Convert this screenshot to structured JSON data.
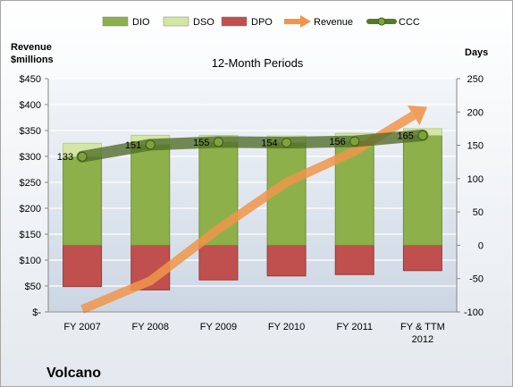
{
  "chart_data": {
    "type": "bar",
    "title": "12-Month Periods",
    "company": "Volcano",
    "left_axis_title": [
      "Revenue",
      "$millions"
    ],
    "right_axis_title": "Days",
    "categories": [
      [
        "FY 2007"
      ],
      [
        "FY 2008"
      ],
      [
        "FY 2009"
      ],
      [
        "FY 2010"
      ],
      [
        "FY 2011"
      ],
      [
        "FY & TTM",
        "2012"
      ]
    ],
    "left_axis": {
      "min": 0,
      "max": 450,
      "step": 50,
      "tick_labels": [
        "$-",
        "$50",
        "$100",
        "$150",
        "$200",
        "$250",
        "$300",
        "$350",
        "$400",
        "$450"
      ]
    },
    "right_axis": {
      "min": -100,
      "max": 250,
      "step": 50,
      "tick_labels": [
        "-100",
        "-50",
        "0",
        "50",
        "100",
        "150",
        "200",
        "250"
      ]
    },
    "legend_position": "top",
    "legend": [
      {
        "label": "DIO",
        "kind": "bar",
        "color": "#8db04a"
      },
      {
        "label": "DSO",
        "kind": "bar",
        "color": "#d3e6a4"
      },
      {
        "label": "DPO",
        "kind": "bar",
        "color": "#c0504d"
      },
      {
        "label": "Revenue",
        "kind": "arrow",
        "color": "#f0954a"
      },
      {
        "label": "CCC",
        "kind": "line-marker",
        "color": "#567a2a"
      }
    ],
    "series": [
      {
        "name": "DIO",
        "axis": "right",
        "values": [
          133,
          151,
          155,
          154,
          156,
          165
        ]
      },
      {
        "name": "DSO",
        "axis": "right",
        "values": [
          20,
          14,
          10,
          10,
          12,
          10
        ]
      },
      {
        "name": "DPO",
        "axis": "right",
        "values": [
          -62,
          -67,
          -52,
          -46,
          -44,
          -38
        ]
      },
      {
        "name": "CCC",
        "axis": "right",
        "values": [
          133,
          151,
          155,
          154,
          156,
          165
        ],
        "labels": [
          "133",
          "151",
          "155",
          "154",
          "156",
          "165"
        ]
      },
      {
        "name": "Revenue",
        "axis": "left",
        "values": [
          5,
          60,
          160,
          250,
          310,
          390
        ]
      }
    ],
    "colors": {
      "dio": "#8db04a",
      "dio_edge": "#6f8f33",
      "dso": "#d3e6a4",
      "dso_edge": "#b7cf7e",
      "dpo": "#c0504d",
      "dpo_edge": "#963b38",
      "revenue": "#f0954a",
      "ccc": "#4f6b28",
      "ccc_marker": "#7fa33a",
      "plot_bg": "#dfe6ee",
      "grid": "#ffffff",
      "frame": "#a6a6a6"
    }
  }
}
